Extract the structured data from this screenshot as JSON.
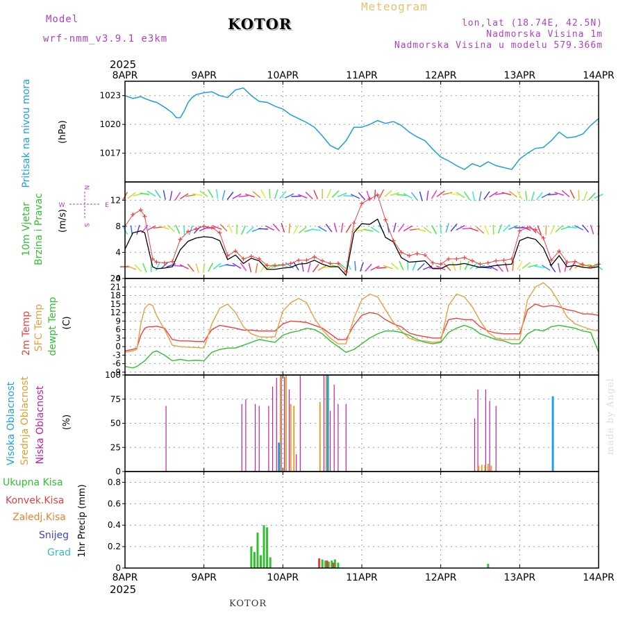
{
  "header": {
    "model_label": "Model",
    "model_name": "wrf-nmm_v3.9.1 e3km",
    "station": "KOTOR",
    "title": "Meteogram",
    "lonlat": "lon,lat (18.74E, 42.5N)",
    "elevation": "Nadmorska Visina 1m",
    "model_elevation": "Nadmorska Visina u modelu 579.366m"
  },
  "footer": {
    "station": "KOTOR",
    "credit": "made by Angel"
  },
  "time_axis": {
    "year": "2025",
    "labels": [
      "8APR",
      "9APR",
      "10APR",
      "11APR",
      "12APR",
      "13APR",
      "14APR"
    ]
  },
  "colors": {
    "pressure": "#1aa0e0",
    "wind_speed": "#000000",
    "wind_gust": "#f04040",
    "temp2m": "#f04040",
    "sfc_temp": "#e8a040",
    "dewpt": "#30c030",
    "high_cloud": "#20a0e0",
    "mid_cloud": "#e0a030",
    "low_cloud": "#c020a0",
    "total_precip": "#30c030",
    "conv_precip": "#e04040",
    "frozen_precip": "#f08030",
    "snow": "#4040e0",
    "graupel": "#30c0c0"
  },
  "chart_data": [
    {
      "type": "line",
      "panel": "pressure",
      "ylabel": [
        "Pritisak na nivou mora",
        "(hPa)"
      ],
      "yticks": [
        1017,
        1020,
        1023
      ],
      "ylim": [
        1014,
        1024.5
      ],
      "grid": true,
      "series": [
        {
          "name": "Pritisak na nivou mora",
          "x": [
            0,
            0.1,
            0.2,
            0.25,
            0.35,
            0.4,
            0.5,
            0.6,
            0.65,
            0.7,
            0.75,
            0.8,
            0.85,
            0.9,
            1.0,
            1.1,
            1.2,
            1.3,
            1.4,
            1.5,
            1.6,
            1.7,
            1.8,
            1.9,
            2.0,
            2.1,
            2.2,
            2.3,
            2.4,
            2.5,
            2.6,
            2.7,
            2.8,
            2.9,
            3.0,
            3.1,
            3.2,
            3.3,
            3.4,
            3.5,
            3.6,
            3.7,
            3.8,
            3.9,
            4.0,
            4.1,
            4.2,
            4.3,
            4.4,
            4.5,
            4.6,
            4.7,
            4.8,
            4.9,
            5.0,
            5.1,
            5.2,
            5.3,
            5.4,
            5.5,
            5.6,
            5.7,
            5.8,
            5.9,
            6.0
          ],
          "values": [
            1023.0,
            1022.7,
            1022.9,
            1022.7,
            1022.4,
            1022.3,
            1021.8,
            1021.2,
            1020.7,
            1020.7,
            1021.4,
            1022.3,
            1022.8,
            1023.1,
            1023.3,
            1023.4,
            1023.0,
            1022.8,
            1023.6,
            1023.8,
            1023.0,
            1022.4,
            1022.3,
            1021.9,
            1021.6,
            1021.0,
            1020.6,
            1020.2,
            1019.7,
            1018.8,
            1017.8,
            1017.4,
            1018.3,
            1019.7,
            1019.7,
            1020.0,
            1020.4,
            1020.1,
            1020.3,
            1019.9,
            1019.2,
            1018.7,
            1018.3,
            1017.4,
            1016.6,
            1016.2,
            1015.7,
            1015.3,
            1015.9,
            1015.6,
            1016.1,
            1015.7,
            1015.5,
            1015.3,
            1016.4,
            1017.0,
            1017.5,
            1017.6,
            1018.3,
            1019.2,
            1018.6,
            1018.7,
            1019.0,
            1019.9,
            1020.6
          ]
        }
      ]
    },
    {
      "type": "line",
      "panel": "wind",
      "ylabel": [
        "10m Vjetar",
        "Brzina i Pravac",
        "(m/s)"
      ],
      "compass": {
        "north": "N",
        "south": "S",
        "east": "E",
        "west": "W"
      },
      "yticks": [
        0,
        4,
        8,
        12
      ],
      "ylim": [
        0,
        14.8
      ],
      "grid": true,
      "series": [
        {
          "name": "Brzina",
          "x": [
            0,
            0.1,
            0.2,
            0.25,
            0.35,
            0.4,
            0.5,
            0.6,
            0.7,
            0.8,
            0.9,
            1.0,
            1.1,
            1.2,
            1.3,
            1.4,
            1.5,
            1.6,
            1.7,
            1.8,
            1.9,
            2.0,
            2.1,
            2.2,
            2.3,
            2.4,
            2.5,
            2.6,
            2.7,
            2.8,
            2.9,
            3.0,
            3.1,
            3.2,
            3.3,
            3.4,
            3.5,
            3.6,
            3.7,
            3.8,
            3.9,
            4.0,
            4.1,
            4.2,
            4.3,
            4.4,
            4.5,
            4.6,
            4.7,
            4.8,
            4.9,
            5.0,
            5.1,
            5.2,
            5.3,
            5.4,
            5.5,
            5.6,
            5.7,
            5.8,
            5.9,
            6.0
          ],
          "values": [
            4.5,
            7.0,
            7.3,
            7.0,
            1.8,
            1.5,
            1.6,
            1.8,
            4.4,
            5.7,
            6.2,
            6.4,
            6.3,
            5.8,
            2.9,
            3.6,
            2.3,
            3.1,
            2.7,
            1.4,
            1.4,
            1.6,
            1.7,
            2.2,
            2.3,
            2.8,
            2.2,
            1.8,
            1.8,
            0.5,
            7.0,
            8.4,
            8.3,
            9.1,
            6.3,
            5.6,
            3.2,
            2.5,
            2.6,
            2.7,
            1.5,
            1.5,
            2.1,
            2.1,
            2.3,
            2.0,
            1.7,
            1.8,
            2.0,
            2.1,
            2.2,
            5.8,
            6.3,
            6.0,
            4.7,
            2.0,
            3.5,
            1.8,
            2.0,
            1.7,
            1.6,
            1.8
          ]
        },
        {
          "name": "Udari",
          "x": [
            0,
            0.1,
            0.2,
            0.25,
            0.35,
            0.4,
            0.5,
            0.6,
            0.7,
            0.8,
            0.9,
            1.0,
            1.1,
            1.2,
            1.3,
            1.4,
            1.5,
            1.6,
            1.7,
            1.8,
            1.9,
            2.0,
            2.1,
            2.2,
            2.3,
            2.4,
            2.5,
            2.6,
            2.7,
            2.8,
            2.9,
            3.0,
            3.1,
            3.2,
            3.3,
            3.4,
            3.5,
            3.6,
            3.7,
            3.8,
            3.9,
            4.0,
            4.1,
            4.2,
            4.3,
            4.4,
            4.5,
            4.6,
            4.7,
            4.8,
            4.9,
            5.0,
            5.1,
            5.2,
            5.3,
            5.4,
            5.5,
            5.6,
            5.7,
            5.8,
            5.9,
            6.0
          ],
          "values": [
            8.0,
            9.8,
            10.5,
            9.5,
            3.0,
            2.5,
            2.4,
            2.6,
            6.0,
            7.2,
            7.6,
            8.0,
            7.8,
            7.0,
            3.5,
            4.2,
            3.0,
            3.4,
            3.0,
            2.0,
            2.0,
            2.1,
            2.3,
            2.8,
            2.8,
            3.3,
            2.7,
            2.3,
            2.3,
            1.0,
            8.5,
            11.5,
            12.2,
            12.8,
            9.0,
            5.8,
            4.0,
            3.5,
            3.8,
            3.6,
            2.4,
            2.2,
            3.0,
            3.0,
            3.2,
            2.7,
            2.2,
            2.4,
            2.7,
            2.8,
            3.0,
            7.3,
            7.8,
            7.5,
            6.2,
            2.8,
            4.2,
            2.5,
            2.6,
            2.1,
            1.8,
            2.2
          ]
        }
      ]
    },
    {
      "type": "line",
      "panel": "temperature",
      "ylabel": [
        "2m Temp",
        "SFC Temp",
        "dewpt Temp",
        "(C)"
      ],
      "yticks": [
        -9,
        -6,
        -3,
        0,
        3,
        6,
        9,
        12,
        15,
        18,
        21,
        24
      ],
      "ylim": [
        -10,
        24
      ],
      "grid": true,
      "series": [
        {
          "name": "2m Temp",
          "x": [
            0,
            0.1,
            0.15,
            0.2,
            0.25,
            0.3,
            0.35,
            0.4,
            0.5,
            0.6,
            0.7,
            0.8,
            0.9,
            1.0,
            1.1,
            1.2,
            1.3,
            1.4,
            1.5,
            1.6,
            1.7,
            1.8,
            1.9,
            2.0,
            2.1,
            2.2,
            2.3,
            2.4,
            2.5,
            2.6,
            2.7,
            2.8,
            2.9,
            3.0,
            3.1,
            3.2,
            3.3,
            3.4,
            3.5,
            3.6,
            3.7,
            3.8,
            3.9,
            4.0,
            4.1,
            4.2,
            4.3,
            4.4,
            4.5,
            4.6,
            4.7,
            4.8,
            4.9,
            5.0,
            5.1,
            5.2,
            5.3,
            5.4,
            5.5,
            5.6,
            5.7,
            5.8,
            5.9,
            6.0
          ],
          "values": [
            -1.5,
            -1.0,
            -0.5,
            4.0,
            6.5,
            7.0,
            7.0,
            7.2,
            6.5,
            2.5,
            2.0,
            2.0,
            1.8,
            1.8,
            6.0,
            7.5,
            7.0,
            6.5,
            5.8,
            5.8,
            5.5,
            5.5,
            5.5,
            8.0,
            9.0,
            8.8,
            8.5,
            7.5,
            6.5,
            4.5,
            2.5,
            2.5,
            7.5,
            11.0,
            12.0,
            11.5,
            9.5,
            8.0,
            7.0,
            4.8,
            4.0,
            3.5,
            3.0,
            3.0,
            9.5,
            10.0,
            9.5,
            9.5,
            7.0,
            5.5,
            4.8,
            4.5,
            4.5,
            4.5,
            13.0,
            15.0,
            14.0,
            14.5,
            14.0,
            13.0,
            12.5,
            11.5,
            11.5,
            11.0
          ]
        },
        {
          "name": "SFC Temp",
          "x": [
            0,
            0.1,
            0.15,
            0.2,
            0.25,
            0.3,
            0.35,
            0.4,
            0.5,
            0.6,
            0.7,
            0.8,
            0.9,
            1.0,
            1.1,
            1.2,
            1.3,
            1.4,
            1.5,
            1.6,
            1.7,
            1.8,
            1.9,
            2.0,
            2.1,
            2.2,
            2.3,
            2.4,
            2.5,
            2.6,
            2.7,
            2.8,
            2.9,
            3.0,
            3.1,
            3.2,
            3.3,
            3.4,
            3.5,
            3.6,
            3.7,
            3.8,
            3.9,
            4.0,
            4.1,
            4.2,
            4.3,
            4.4,
            4.5,
            4.6,
            4.7,
            4.8,
            4.9,
            5.0,
            5.1,
            5.2,
            5.3,
            5.4,
            5.5,
            5.6,
            5.7,
            5.8,
            5.9,
            6.0
          ],
          "values": [
            -2.0,
            -1.5,
            -1.0,
            8.0,
            13.5,
            15.0,
            14.5,
            11.0,
            6.0,
            0.5,
            0.0,
            -0.2,
            -0.3,
            -0.5,
            8.0,
            13.5,
            15.0,
            12.0,
            7.0,
            4.5,
            3.5,
            3.3,
            3.5,
            12.5,
            15.5,
            17.0,
            15.5,
            10.0,
            6.0,
            3.0,
            1.0,
            1.0,
            10.0,
            16.5,
            18.5,
            17.5,
            13.0,
            8.5,
            5.5,
            3.0,
            2.0,
            2.0,
            1.5,
            1.8,
            14.5,
            18.5,
            17.5,
            14.0,
            9.0,
            5.0,
            3.0,
            2.5,
            2.5,
            2.5,
            16.5,
            21.0,
            22.5,
            20.0,
            15.5,
            10.5,
            8.0,
            7.0,
            6.0,
            5.5
          ]
        },
        {
          "name": "dewpt Temp",
          "x": [
            0,
            0.1,
            0.15,
            0.2,
            0.25,
            0.3,
            0.35,
            0.4,
            0.5,
            0.6,
            0.7,
            0.8,
            0.9,
            1.0,
            1.1,
            1.2,
            1.3,
            1.4,
            1.5,
            1.6,
            1.7,
            1.8,
            1.9,
            2.0,
            2.1,
            2.2,
            2.3,
            2.4,
            2.5,
            2.6,
            2.7,
            2.8,
            2.9,
            3.0,
            3.1,
            3.2,
            3.3,
            3.4,
            3.5,
            3.6,
            3.7,
            3.8,
            3.9,
            4.0,
            4.1,
            4.2,
            4.3,
            4.4,
            4.5,
            4.6,
            4.7,
            4.8,
            4.9,
            5.0,
            5.1,
            5.2,
            5.3,
            5.4,
            5.5,
            5.6,
            5.7,
            5.8,
            5.9,
            6.0
          ],
          "values": [
            -7.0,
            -7.5,
            -7.0,
            -6.0,
            -5.0,
            -3.5,
            -2.0,
            -1.5,
            -3.0,
            -5.0,
            -4.5,
            -5.0,
            -4.8,
            -5.0,
            -2.0,
            -1.0,
            -0.5,
            -0.5,
            0.5,
            1.5,
            2.5,
            2.0,
            1.5,
            4.0,
            5.0,
            5.5,
            6.5,
            6.0,
            4.5,
            2.0,
            0.0,
            -2.0,
            -1.0,
            1.0,
            3.0,
            4.5,
            5.5,
            5.5,
            5.0,
            4.0,
            2.5,
            1.5,
            1.0,
            1.5,
            5.0,
            6.5,
            7.5,
            6.5,
            4.5,
            3.5,
            2.5,
            2.0,
            1.0,
            1.0,
            4.5,
            6.0,
            5.5,
            7.0,
            7.5,
            7.0,
            6.5,
            5.5,
            5.0,
            -2.0
          ]
        }
      ]
    },
    {
      "type": "bar",
      "panel": "cloud",
      "ylabel": [
        "Visoka Oblacnost",
        "Srednja Oblacnost",
        "Niska Oblacnost",
        "(%)"
      ],
      "yticks": [
        0,
        25,
        50,
        75,
        100
      ],
      "ylim": [
        0,
        100
      ],
      "grid": true,
      "series": [
        {
          "name": "Niska Oblacnost",
          "x": [
            0.52,
            1.48,
            1.53,
            1.65,
            1.7,
            1.82,
            1.87,
            1.92,
            1.98,
            2.02,
            2.08,
            2.17,
            2.22,
            2.52,
            2.6,
            2.65,
            2.7,
            2.8,
            4.43,
            4.47,
            4.57,
            4.62,
            4.7
          ],
          "values": [
            68,
            70,
            75,
            70,
            68,
            68,
            88,
            97,
            100,
            98,
            85,
            18,
            100,
            100,
            63,
            90,
            70,
            70,
            55,
            85,
            85,
            73,
            68
          ]
        },
        {
          "name": "Srednja Oblacnost",
          "x": [
            1.97,
            2.04,
            2.1,
            2.14,
            2.47,
            2.55,
            4.48,
            4.52,
            4.56,
            4.6,
            4.64
          ],
          "values": [
            100,
            100,
            70,
            68,
            72,
            100,
            6,
            7,
            7,
            8,
            6
          ]
        },
        {
          "name": "Visoka Oblacnost",
          "x": [
            1.95,
            2.57,
            5.42
          ],
          "values": [
            30,
            100,
            78
          ]
        }
      ]
    },
    {
      "type": "bar",
      "panel": "precipitation",
      "ylabel": [
        "1hr Precip (mm)"
      ],
      "legend": [
        "Ukupna Kisa",
        "Konvek.Kisa",
        "Zaledj.Kisa",
        "Snijeg",
        "Grad"
      ],
      "yticks": [
        0,
        0.2,
        0.4,
        0.6,
        0.8
      ],
      "ylim": [
        0,
        0.9
      ],
      "grid": true,
      "series": [
        {
          "name": "Ukupna Kisa",
          "x": [
            1.6,
            1.64,
            1.68,
            1.72,
            1.76,
            1.8,
            1.84,
            2.5,
            2.54,
            2.58,
            2.62,
            2.66,
            2.7,
            4.6
          ],
          "values": [
            0.2,
            0.15,
            0.33,
            0.12,
            0.4,
            0.38,
            0.1,
            0.08,
            0.07,
            0.06,
            0.07,
            0.08,
            0.05,
            0.04
          ]
        },
        {
          "name": "Konvek.Kisa",
          "x": [
            2.46,
            2.56,
            2.64
          ],
          "values": [
            0.09,
            0.07,
            0.05
          ]
        }
      ]
    }
  ]
}
